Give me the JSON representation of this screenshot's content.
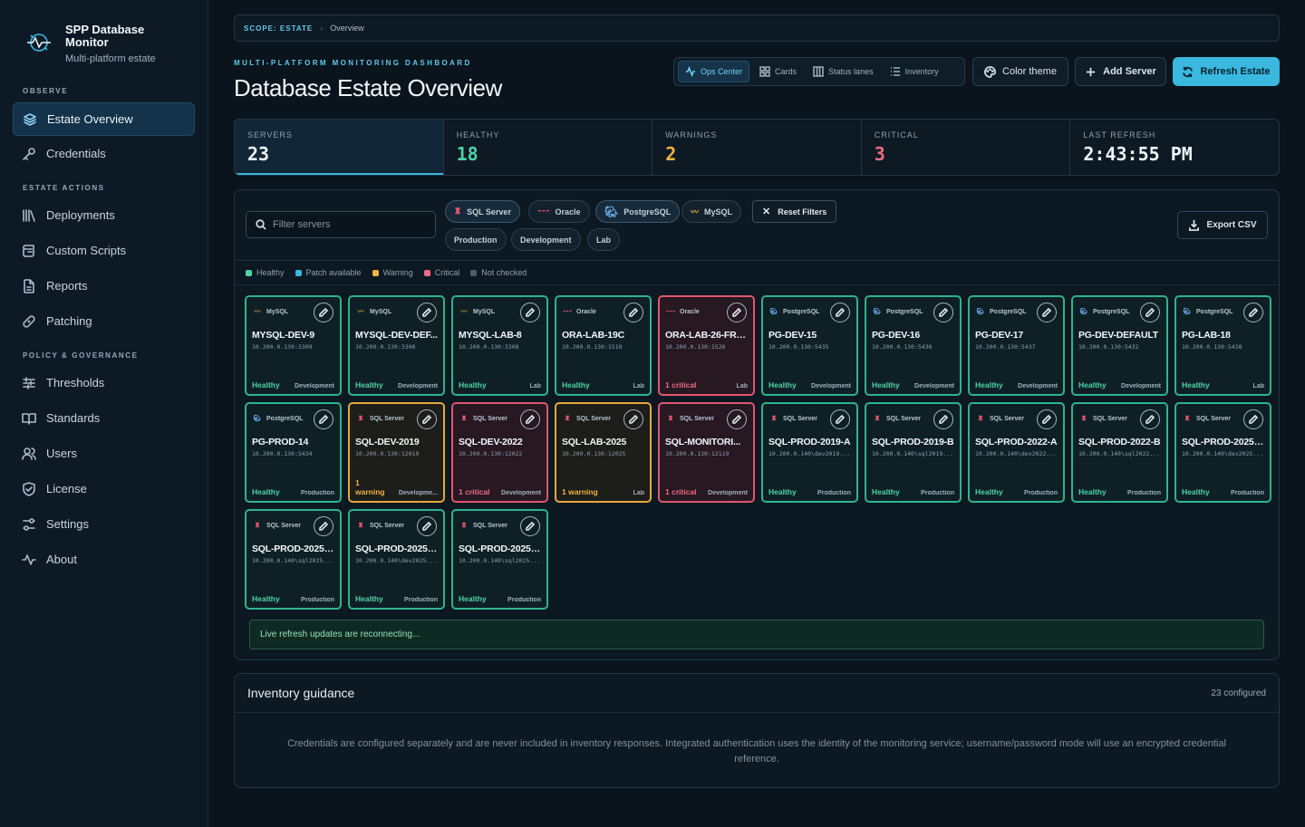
{
  "brand": {
    "title": "SPP Database Monitor",
    "subtitle": "Multi-platform estate"
  },
  "nav": {
    "observe_label": "OBSERVE",
    "actions_label": "ESTATE ACTIONS",
    "policy_label": "POLICY & GOVERNANCE",
    "items": [
      {
        "label": "Estate Overview",
        "icon": "layers-icon",
        "active": true
      },
      {
        "label": "Credentials",
        "icon": "key-icon"
      },
      {
        "label": "Deployments",
        "icon": "library-icon"
      },
      {
        "label": "Custom Scripts",
        "icon": "scroll-icon"
      },
      {
        "label": "Reports",
        "icon": "file-icon"
      },
      {
        "label": "Patching",
        "icon": "bandage-icon"
      },
      {
        "label": "Thresholds",
        "icon": "sliders-icon"
      },
      {
        "label": "Standards",
        "icon": "book-icon"
      },
      {
        "label": "Users",
        "icon": "users-icon"
      },
      {
        "label": "License",
        "icon": "shield-icon"
      },
      {
        "label": "Settings",
        "icon": "settings-icon"
      },
      {
        "label": "About",
        "icon": "pulse-icon"
      }
    ]
  },
  "breadcrumb": {
    "scope": "SCOPE: ESTATE",
    "current": "Overview"
  },
  "header": {
    "eyebrow": "MULTI-PLATFORM MONITORING DASHBOARD",
    "title": "Database Estate Overview"
  },
  "views": {
    "ops": "Ops Center",
    "cards": "Cards",
    "lanes": "Status lanes",
    "inventory": "Inventory"
  },
  "actions": {
    "theme": "Color theme",
    "add": "Add Server",
    "refresh": "Refresh Estate"
  },
  "stats": {
    "servers": {
      "label": "SERVERS",
      "value": "23"
    },
    "healthy": {
      "label": "HEALTHY",
      "value": "18"
    },
    "warnings": {
      "label": "WARNINGS",
      "value": "2"
    },
    "critical": {
      "label": "CRITICAL",
      "value": "3"
    },
    "refresh": {
      "label": "LAST REFRESH",
      "value": "2:43:55 PM"
    }
  },
  "filters": {
    "placeholder": "Filter servers",
    "engines": [
      "SQL Server",
      "Oracle",
      "PostgreSQL",
      "MySQL"
    ],
    "reset": "Reset Filters",
    "environments": [
      "Production",
      "Development",
      "Lab"
    ],
    "export": "Export CSV"
  },
  "legend": [
    "Healthy",
    "Patch available",
    "Warning",
    "Critical",
    "Not checked"
  ],
  "colors": {
    "healthy": "#4fd3a4",
    "patch": "#3ab8e0",
    "warning": "#f1b43f",
    "critical": "#f06b82",
    "unchecked": "#4b5d6b"
  },
  "servers": [
    {
      "engine": "MySQL",
      "name": "MYSQL-DEV-9",
      "addr": "10.200.0.130:3309",
      "status": "Healthy",
      "env": "Development",
      "state": "healthy"
    },
    {
      "engine": "MySQL",
      "name": "MYSQL-DEV-DEF...",
      "addr": "10.200.0.130:3306",
      "status": "Healthy",
      "env": "Development",
      "state": "healthy"
    },
    {
      "engine": "MySQL",
      "name": "MYSQL-LAB-8",
      "addr": "10.200.0.130:3308",
      "status": "Healthy",
      "env": "Lab",
      "state": "healthy"
    },
    {
      "engine": "Oracle",
      "name": "ORA-LAB-19C",
      "addr": "10.200.0.130:1519",
      "status": "Healthy",
      "env": "Lab",
      "state": "healthy"
    },
    {
      "engine": "Oracle",
      "name": "ORA-LAB-26-FREE",
      "addr": "10.200.0.130:1526",
      "status": "1 critical",
      "env": "Lab",
      "state": "critical"
    },
    {
      "engine": "PostgreSQL",
      "name": "PG-DEV-15",
      "addr": "10.200.0.130:5435",
      "status": "Healthy",
      "env": "Development",
      "state": "healthy"
    },
    {
      "engine": "PostgreSQL",
      "name": "PG-DEV-16",
      "addr": "10.200.0.130:5436",
      "status": "Healthy",
      "env": "Development",
      "state": "healthy"
    },
    {
      "engine": "PostgreSQL",
      "name": "PG-DEV-17",
      "addr": "10.200.0.130:5437",
      "status": "Healthy",
      "env": "Development",
      "state": "healthy"
    },
    {
      "engine": "PostgreSQL",
      "name": "PG-DEV-DEFAULT",
      "addr": "10.200.0.130:5432",
      "status": "Healthy",
      "env": "Development",
      "state": "healthy"
    },
    {
      "engine": "PostgreSQL",
      "name": "PG-LAB-18",
      "addr": "10.200.0.130:5438",
      "status": "Healthy",
      "env": "Lab",
      "state": "healthy"
    },
    {
      "engine": "PostgreSQL",
      "name": "PG-PROD-14",
      "addr": "10.200.0.130:5434",
      "status": "Healthy",
      "env": "Production",
      "state": "healthy"
    },
    {
      "engine": "SQL Server",
      "name": "SQL-DEV-2019",
      "addr": "10.200.0.130:12019",
      "status": "1 warning",
      "env": "Developme...",
      "state": "warning"
    },
    {
      "engine": "SQL Server",
      "name": "SQL-DEV-2022",
      "addr": "10.200.0.130:12022",
      "status": "1 critical",
      "env": "Development",
      "state": "critical"
    },
    {
      "engine": "SQL Server",
      "name": "SQL-LAB-2025",
      "addr": "10.200.0.130:12025",
      "status": "1 warning",
      "env": "Lab",
      "state": "warning"
    },
    {
      "engine": "SQL Server",
      "name": "SQL-MONITORI...",
      "addr": "10.200.0.130:12119",
      "status": "1 critical",
      "env": "Development",
      "state": "critical"
    },
    {
      "engine": "SQL Server",
      "name": "SQL-PROD-2019-A",
      "addr": "10.200.0.140\\dev2019...",
      "status": "Healthy",
      "env": "Production",
      "state": "healthy"
    },
    {
      "engine": "SQL Server",
      "name": "SQL-PROD-2019-B",
      "addr": "10.200.0.140\\sql2019...",
      "status": "Healthy",
      "env": "Production",
      "state": "healthy"
    },
    {
      "engine": "SQL Server",
      "name": "SQL-PROD-2022-A",
      "addr": "10.200.0.140\\dev2022...",
      "status": "Healthy",
      "env": "Production",
      "state": "healthy"
    },
    {
      "engine": "SQL Server",
      "name": "SQL-PROD-2022-B",
      "addr": "10.200.0.140\\sql2022...",
      "status": "Healthy",
      "env": "Production",
      "state": "healthy"
    },
    {
      "engine": "SQL Server",
      "name": "SQL-PROD-2025-...",
      "addr": "10.200.0.140\\dev2025...",
      "status": "Healthy",
      "env": "Production",
      "state": "healthy"
    },
    {
      "engine": "SQL Server",
      "name": "SQL-PROD-2025-...",
      "addr": "10.200.0.140\\sql2025...",
      "status": "Healthy",
      "env": "Production",
      "state": "healthy"
    },
    {
      "engine": "SQL Server",
      "name": "SQL-PROD-2025-...",
      "addr": "10.200.0.140\\dev2025...",
      "status": "Healthy",
      "env": "Production",
      "state": "healthy"
    },
    {
      "engine": "SQL Server",
      "name": "SQL-PROD-2025-...",
      "addr": "10.200.0.140\\sql2025...",
      "status": "Healthy",
      "env": "Production",
      "state": "healthy"
    }
  ],
  "notice": "Live refresh updates are reconnecting...",
  "guidance": {
    "title": "Inventory guidance",
    "count": "23 configured",
    "body": "Credentials are configured separately and are never included in inventory responses. Integrated authentication uses the identity of the monitoring service; username/password mode will use an encrypted credential reference."
  }
}
